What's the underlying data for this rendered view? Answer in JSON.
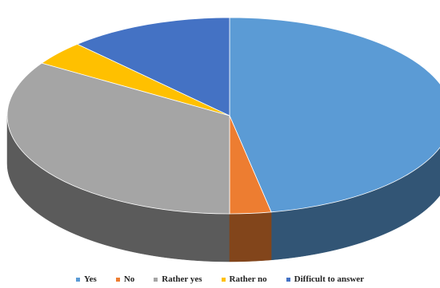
{
  "chart_data": {
    "type": "pie",
    "style": "3d",
    "title": "",
    "categories": [
      "Yes",
      "No",
      "Rather yes",
      "Rather no",
      "Difficult to answer"
    ],
    "values": [
      47,
      3,
      34,
      4,
      12
    ],
    "colors": [
      "#5b9bd5",
      "#ed7d31",
      "#a5a5a5",
      "#ffc000",
      "#4472c4"
    ],
    "legend_position": "bottom"
  }
}
